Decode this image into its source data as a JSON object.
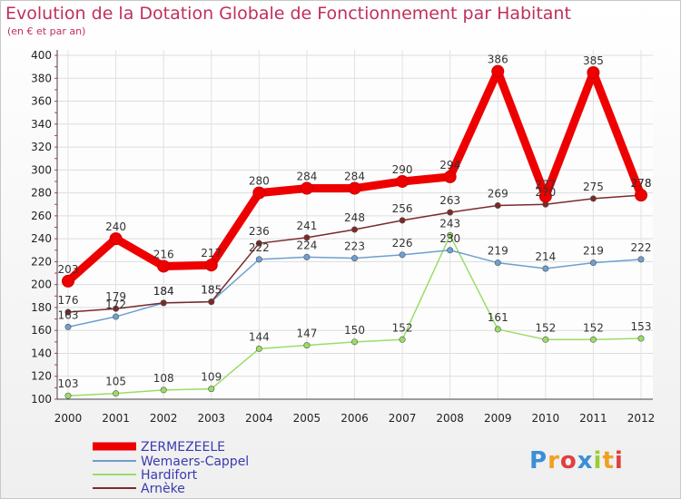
{
  "chart_data": {
    "type": "line",
    "title": "Evolution de la Dotation Globale de Fonctionnement par Habitant",
    "subtitle": "(en € et par an)",
    "x": [
      "2000",
      "2001",
      "2002",
      "2003",
      "2004",
      "2005",
      "2006",
      "2007",
      "2008",
      "2009",
      "2010",
      "2011",
      "2012"
    ],
    "ylim": [
      100,
      400
    ],
    "yticks": [
      "100",
      "120",
      "140",
      "160",
      "180",
      "200",
      "220",
      "240",
      "260",
      "280",
      "300",
      "320",
      "340",
      "360",
      "380",
      "400"
    ],
    "series": [
      {
        "name": "ZERMEZEELE",
        "color": "#ee0000",
        "values": [
          203,
          240,
          216,
          217,
          280,
          284,
          284,
          290,
          294,
          386,
          277,
          385,
          278
        ],
        "labels": [
          "203",
          "240",
          "216",
          "217",
          "280",
          "284",
          "284",
          "290",
          "294",
          "386",
          "277",
          "385",
          "278"
        ]
      },
      {
        "name": "Wemaers-Cappel",
        "color": "#6e9fd0",
        "values": [
          163,
          172,
          184,
          185,
          222,
          224,
          223,
          226,
          230,
          219,
          214,
          219,
          222
        ],
        "labels": [
          "163",
          "172",
          "184",
          "185",
          "222",
          "224",
          "223",
          "226",
          "230",
          "219",
          "214",
          "219",
          "222"
        ]
      },
      {
        "name": "Hardifort",
        "color": "#99dd66",
        "values": [
          103,
          105,
          108,
          109,
          144,
          147,
          150,
          152,
          243,
          161,
          152,
          152,
          153
        ],
        "labels": [
          "103",
          "105",
          "108",
          "109",
          "144",
          "147",
          "150",
          "152",
          "243",
          "161",
          "152",
          "152",
          "153"
        ]
      },
      {
        "name": "Arnèke",
        "color": "#7b2a2a",
        "values": [
          176,
          179,
          184,
          185,
          236,
          241,
          248,
          256,
          263,
          269,
          270,
          275,
          278
        ],
        "labels": [
          "176",
          "179",
          "184",
          "185",
          "236",
          "241",
          "248",
          "256",
          "263",
          "269",
          "270",
          "275",
          "278"
        ]
      }
    ],
    "legend": "bottom-left"
  },
  "logo": {
    "text": "Proxiti",
    "letters": [
      "P",
      "r",
      "o",
      "x",
      "i",
      "t",
      "i"
    ],
    "colors": [
      "#3b8fd6",
      "#f0a020",
      "#e04040",
      "#3b8fd6",
      "#9acd32",
      "#f0a020",
      "#e04040"
    ]
  }
}
